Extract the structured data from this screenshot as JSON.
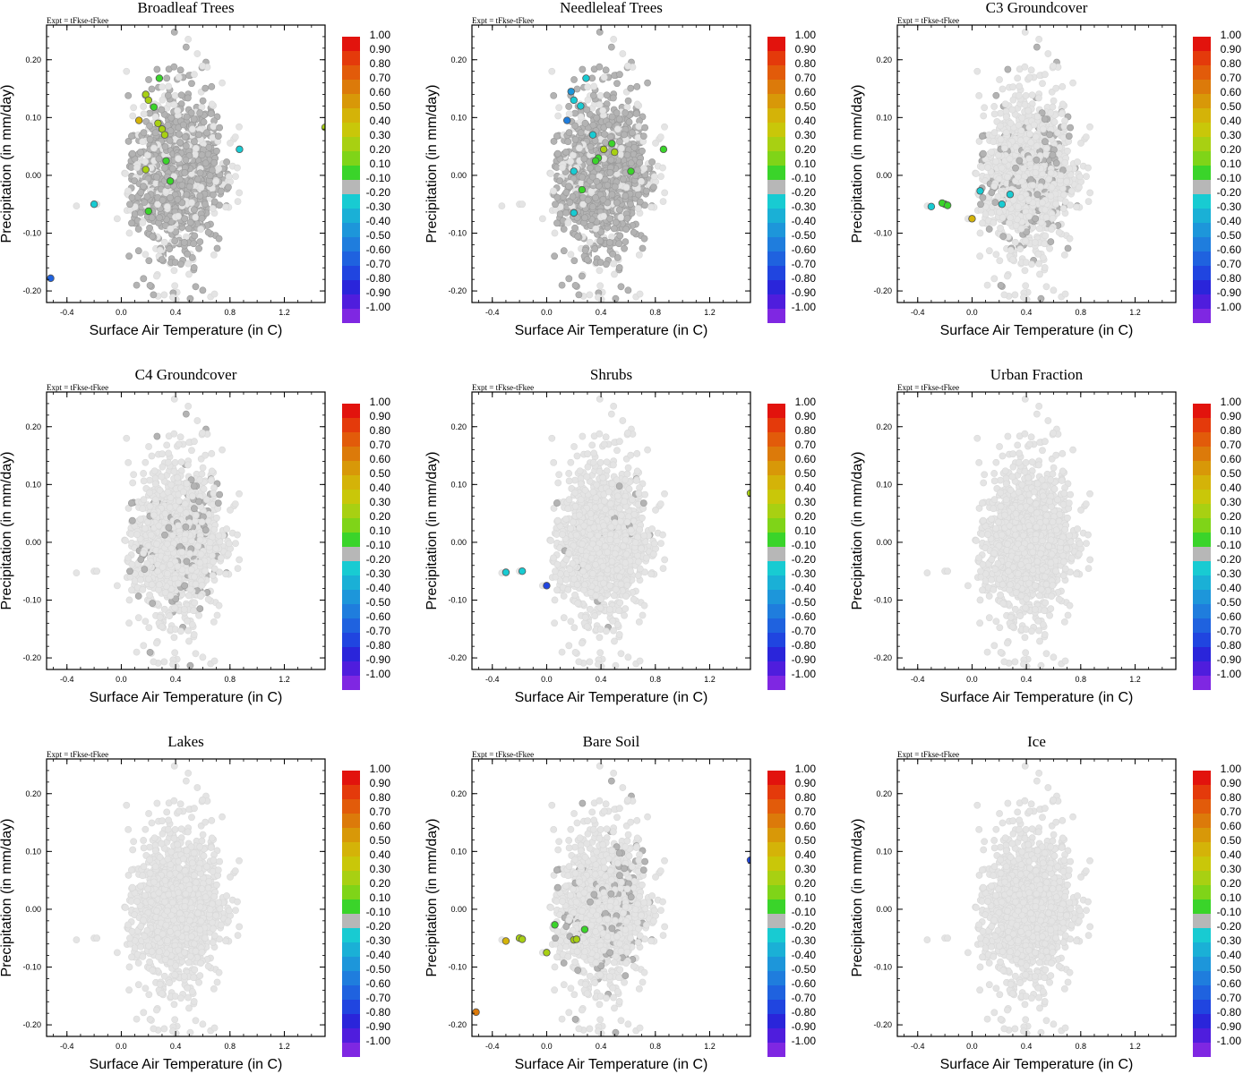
{
  "chart_data": {
    "type": "scatter",
    "experiment_label": "Expt = tFkse-tFkee",
    "xlabel": "Surface Air Temperature (in C)",
    "ylabel": "Precipitation (in mm/day)",
    "xlim": [
      -0.55,
      1.5
    ],
    "ylim": [
      -0.22,
      0.26
    ],
    "xticks": [
      -0.4,
      0.0,
      0.4,
      0.8,
      1.2
    ],
    "xtick_labels": [
      "-0.4",
      "0.0",
      "0.4",
      "0.8",
      "1.2"
    ],
    "yticks": [
      0.2,
      0.1,
      0.0,
      -0.1,
      -0.2
    ],
    "ytick_labels": [
      "0.20",
      "0.10",
      "0.00",
      "-0.10",
      "-0.20"
    ],
    "colorbar": {
      "labels": [
        "1.00",
        "0.90",
        "0.80",
        "0.70",
        "0.60",
        "0.50",
        "0.40",
        "0.30",
        "0.20",
        "0.10",
        "-0.10",
        "-0.20",
        "-0.30",
        "-0.40",
        "-0.50",
        "-0.60",
        "-0.70",
        "-0.80",
        "-0.90",
        "-1.00"
      ],
      "colors": [
        "#e2130d",
        "#e43a0b",
        "#e25b0a",
        "#dc7a0a",
        "#d89808",
        "#d4b308",
        "#c9c709",
        "#a8d012",
        "#7fd418",
        "#3ad42a",
        "#b7b7b7",
        "#18cbd2",
        "#1ab0d6",
        "#1d96da",
        "#1f7ddd",
        "#1f62df",
        "#2045e0",
        "#2a25da",
        "#4f1ddd",
        "#7f27e2"
      ]
    },
    "background_color": "#e4e4e4",
    "neutral_color": "#b3b3b3",
    "panels": [
      {
        "title": "Broadleaf Trees",
        "highlights": [
          {
            "x": 0.28,
            "y": 0.168,
            "value": 0.15
          },
          {
            "x": 0.18,
            "y": 0.14,
            "value": 0.35
          },
          {
            "x": 0.2,
            "y": 0.13,
            "value": 0.35
          },
          {
            "x": 0.24,
            "y": 0.118,
            "value": 0.15
          },
          {
            "x": 0.13,
            "y": 0.095,
            "value": 0.45
          },
          {
            "x": 0.27,
            "y": 0.09,
            "value": 0.25
          },
          {
            "x": 0.3,
            "y": 0.08,
            "value": 0.25
          },
          {
            "x": 0.32,
            "y": 0.07,
            "value": 0.25
          },
          {
            "x": 0.33,
            "y": 0.025,
            "value": 0.15
          },
          {
            "x": 0.18,
            "y": 0.01,
            "value": 0.25
          },
          {
            "x": 0.36,
            "y": -0.01,
            "value": 0.15
          },
          {
            "x": 0.2,
            "y": -0.062,
            "value": 0.15
          },
          {
            "x": 0.87,
            "y": 0.045,
            "value": -0.2
          },
          {
            "x": 1.5,
            "y": 0.083,
            "value": 0.35
          },
          {
            "x": -0.2,
            "y": -0.05,
            "value": -0.2
          },
          {
            "x": -0.52,
            "y": -0.178,
            "value": -0.6
          }
        ]
      },
      {
        "title": "Needleleaf Trees",
        "highlights": [
          {
            "x": 0.29,
            "y": 0.168,
            "value": -0.2
          },
          {
            "x": 0.18,
            "y": 0.145,
            "value": -0.4
          },
          {
            "x": 0.2,
            "y": 0.13,
            "value": -0.2
          },
          {
            "x": 0.25,
            "y": 0.12,
            "value": -0.2
          },
          {
            "x": 0.15,
            "y": 0.095,
            "value": -0.5
          },
          {
            "x": 0.34,
            "y": 0.07,
            "value": -0.2
          },
          {
            "x": 0.48,
            "y": 0.055,
            "value": 0.15
          },
          {
            "x": 0.42,
            "y": 0.045,
            "value": 0.35
          },
          {
            "x": 0.5,
            "y": 0.04,
            "value": 0.35
          },
          {
            "x": 0.38,
            "y": 0.03,
            "value": 0.15
          },
          {
            "x": 0.36,
            "y": 0.025,
            "value": 0.15
          },
          {
            "x": 0.86,
            "y": 0.045,
            "value": 0.15
          },
          {
            "x": 0.2,
            "y": 0.007,
            "value": -0.2
          },
          {
            "x": 0.62,
            "y": 0.007,
            "value": 0.15
          },
          {
            "x": 0.26,
            "y": -0.025,
            "value": 0.15
          },
          {
            "x": 0.2,
            "y": -0.065,
            "value": -0.2
          }
        ]
      },
      {
        "title": "C3 Groundcover",
        "highlights": [
          {
            "x": -0.3,
            "y": -0.054,
            "value": -0.2
          },
          {
            "x": -0.2,
            "y": -0.05,
            "value": 0.15
          },
          {
            "x": -0.22,
            "y": -0.048,
            "value": 0.15
          },
          {
            "x": -0.18,
            "y": -0.052,
            "value": 0.15
          },
          {
            "x": 0.0,
            "y": -0.075,
            "value": 0.45
          },
          {
            "x": 0.06,
            "y": -0.027,
            "value": -0.2
          },
          {
            "x": 0.22,
            "y": -0.05,
            "value": -0.2
          },
          {
            "x": 0.28,
            "y": -0.033,
            "value": -0.2
          }
        ]
      },
      {
        "title": "C4 Groundcover",
        "highlights": []
      },
      {
        "title": "Shrubs",
        "highlights": [
          {
            "x": -0.3,
            "y": -0.052,
            "value": -0.2
          },
          {
            "x": -0.18,
            "y": -0.05,
            "value": -0.2
          },
          {
            "x": 0.0,
            "y": -0.075,
            "value": -0.75
          },
          {
            "x": 1.5,
            "y": 0.085,
            "value": 0.35
          }
        ]
      },
      {
        "title": "Urban Fraction",
        "highlights": []
      },
      {
        "title": "Lakes",
        "highlights": []
      },
      {
        "title": "Bare Soil",
        "highlights": [
          {
            "x": -0.3,
            "y": -0.055,
            "value": 0.45
          },
          {
            "x": -0.2,
            "y": -0.05,
            "value": 0.25
          },
          {
            "x": -0.18,
            "y": -0.052,
            "value": 0.25
          },
          {
            "x": 0.0,
            "y": -0.075,
            "value": 0.25
          },
          {
            "x": 0.06,
            "y": -0.027,
            "value": 0.15
          },
          {
            "x": 0.2,
            "y": -0.053,
            "value": 0.25
          },
          {
            "x": 0.22,
            "y": -0.052,
            "value": 0.25
          },
          {
            "x": 0.28,
            "y": -0.035,
            "value": 0.15
          },
          {
            "x": -0.52,
            "y": -0.178,
            "value": 0.65
          },
          {
            "x": 1.5,
            "y": 0.085,
            "value": -0.75
          }
        ]
      },
      {
        "title": "Ice",
        "highlights": []
      }
    ]
  }
}
